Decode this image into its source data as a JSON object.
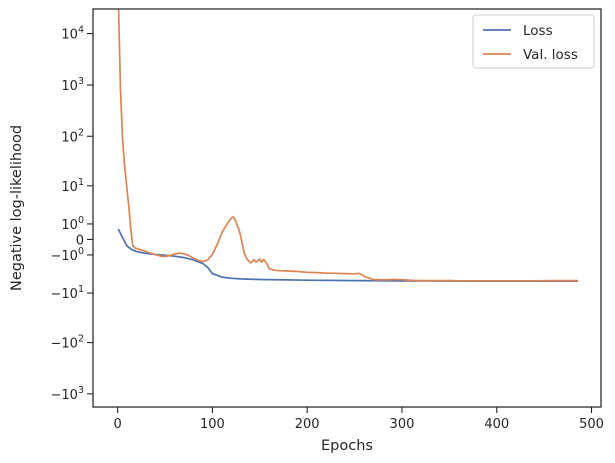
{
  "chart_data": {
    "type": "line",
    "title": "",
    "xlabel": "Epochs",
    "ylabel": "Negative log-likelihood",
    "yscale": "symlog",
    "xlim": [
      -26,
      510
    ],
    "ylim": [
      -1800,
      30000
    ],
    "grid": false,
    "legend": {
      "position": "top-right",
      "entries": [
        "Loss",
        "Val. loss"
      ]
    },
    "x_ticks": [
      {
        "value": 0,
        "label": "0"
      },
      {
        "value": 100,
        "label": "100"
      },
      {
        "value": 200,
        "label": "200"
      },
      {
        "value": 300,
        "label": "300"
      },
      {
        "value": 400,
        "label": "400"
      },
      {
        "value": 500,
        "label": "500"
      }
    ],
    "y_ticks": [
      {
        "value": 10000,
        "label": "10",
        "exp": "4"
      },
      {
        "value": 1000,
        "label": "10",
        "exp": "3"
      },
      {
        "value": 100,
        "label": "10",
        "exp": "2"
      },
      {
        "value": 10,
        "label": "10",
        "exp": "1"
      },
      {
        "value": 1,
        "label": "10",
        "exp": "0"
      },
      {
        "value": 0,
        "label": "0",
        "exp": ""
      },
      {
        "value": -1,
        "label": "−10",
        "exp": "0"
      },
      {
        "value": -10,
        "label": "−10",
        "exp": "1"
      },
      {
        "value": -100,
        "label": "−10",
        "exp": "2"
      },
      {
        "value": -1000,
        "label": "−10",
        "exp": "3"
      }
    ],
    "series": [
      {
        "name": "Loss",
        "color": "#4c72b0",
        "x": [
          1,
          5,
          10,
          15,
          20,
          30,
          40,
          50,
          60,
          70,
          80,
          90,
          95,
          100,
          110,
          120,
          130,
          150,
          200,
          250,
          300,
          350,
          400,
          450,
          485
        ],
        "y": [
          0.55,
          0.1,
          -0.35,
          -0.58,
          -0.72,
          -0.87,
          -0.96,
          -1.02,
          -1.12,
          -1.25,
          -1.5,
          -1.95,
          -2.5,
          -3.6,
          -4.4,
          -4.7,
          -4.85,
          -5.0,
          -5.2,
          -5.3,
          -5.4,
          -5.43,
          -5.45,
          -5.46,
          -5.47
        ]
      },
      {
        "name": "Val. loss",
        "color": "#dd8452",
        "x": [
          1,
          3,
          5,
          7,
          10,
          12,
          14,
          16,
          18,
          20,
          25,
          30,
          35,
          40,
          45,
          50,
          55,
          60,
          65,
          70,
          75,
          80,
          85,
          90,
          95,
          100,
          105,
          110,
          115,
          118,
          120,
          122,
          124,
          126,
          128,
          130,
          132,
          134,
          136,
          138,
          140,
          142,
          144,
          146,
          148,
          150,
          152,
          154,
          156,
          158,
          160,
          165,
          170,
          180,
          190,
          200,
          210,
          220,
          230,
          240,
          250,
          255,
          260,
          270,
          280,
          290,
          300,
          310,
          320,
          330,
          340,
          350,
          360,
          380,
          400,
          420,
          440,
          460,
          485
        ],
        "y": [
          30000,
          800,
          100,
          30,
          8,
          3,
          0.5,
          -0.3,
          -0.45,
          -0.5,
          -0.6,
          -0.72,
          -0.85,
          -0.98,
          -1.1,
          -1.15,
          -1.05,
          -0.92,
          -0.85,
          -0.9,
          -1.05,
          -1.3,
          -1.55,
          -1.7,
          -1.5,
          -0.95,
          -0.25,
          0.35,
          0.95,
          1.35,
          1.6,
          1.75,
          1.4,
          0.9,
          0.55,
          0.1,
          -0.35,
          -0.9,
          -1.3,
          -1.6,
          -1.85,
          -1.7,
          -1.45,
          -1.75,
          -1.6,
          -1.4,
          -1.75,
          -1.45,
          -1.7,
          -2.1,
          -2.7,
          -2.95,
          -3.05,
          -3.1,
          -3.2,
          -3.35,
          -3.4,
          -3.5,
          -3.55,
          -3.6,
          -3.65,
          -3.55,
          -4.2,
          -5.0,
          -5.1,
          -5.0,
          -5.05,
          -5.25,
          -5.3,
          -5.3,
          -5.3,
          -5.3,
          -5.35,
          -5.35,
          -5.35,
          -5.35,
          -5.35,
          -5.3,
          -5.3
        ]
      }
    ]
  }
}
